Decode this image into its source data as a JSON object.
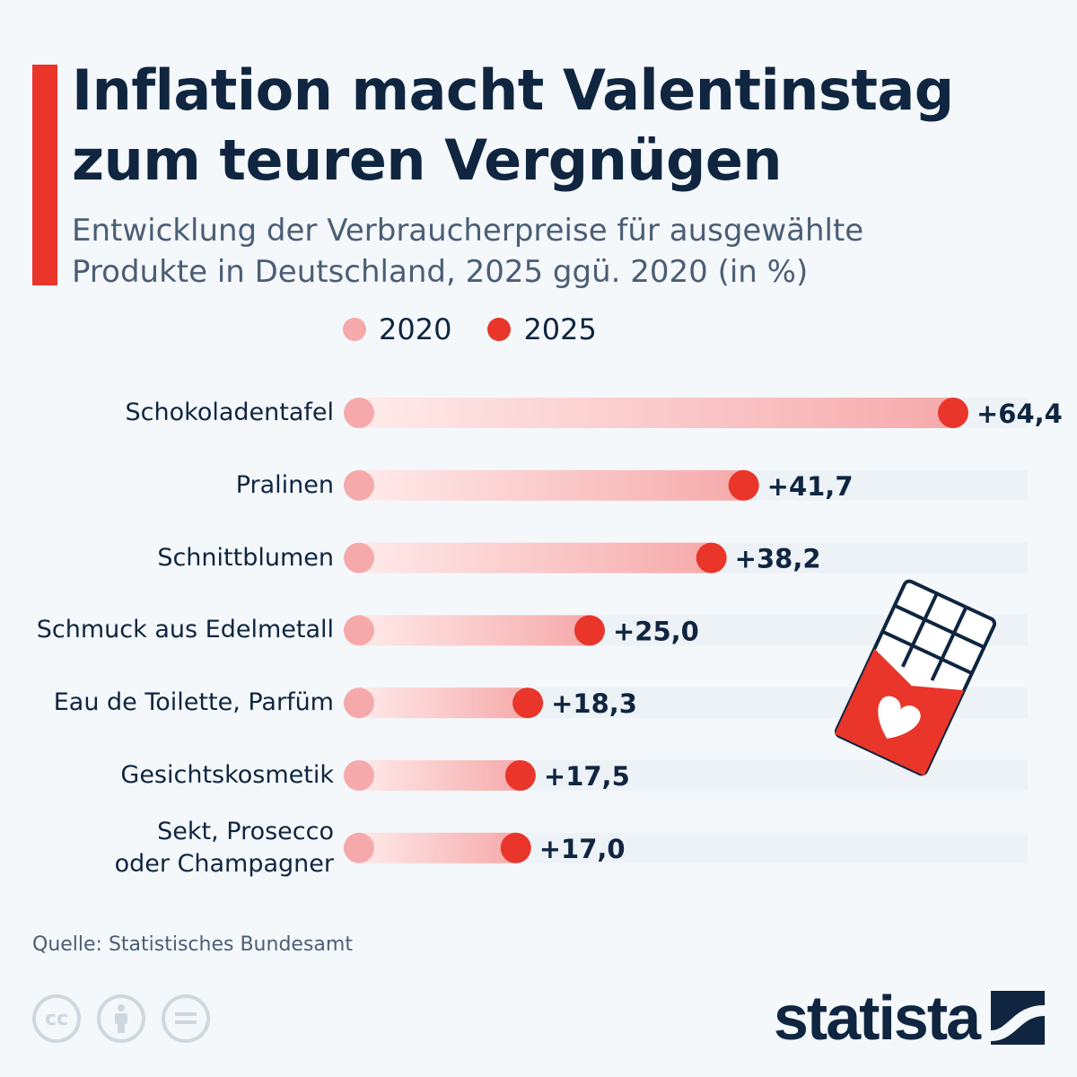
{
  "title_lines": [
    "Inflation macht Valentinstag",
    "zum teuren Vergnügen"
  ],
  "subtitle_lines": [
    "Entwicklung der Verbraucherpreise für ausgewählte",
    "Produkte in Deutschland, 2025 ggü. 2020 (in %)"
  ],
  "colors": {
    "accent": "#e9352a",
    "c2020": "#f6a9ab",
    "c2025": "#e9352a",
    "text": "#0f2540"
  },
  "chart_data": {
    "type": "dumbbell",
    "legend": [
      {
        "name": "2020",
        "color": "#f6a9ab"
      },
      {
        "name": "2025",
        "color": "#e9352a"
      }
    ],
    "categories": [
      "Schokoladentafel",
      "Pralinen",
      "Schnittblumen",
      "Schmuck aus Edelmetall",
      "Eau de Toilette, Parfüm",
      "Gesichtskosmetik",
      "Sekt, Prosecco oder Champagner"
    ],
    "category_lines": [
      [
        "Schokoladentafel"
      ],
      [
        "Pralinen"
      ],
      [
        "Schnittblumen"
      ],
      [
        "Schmuck aus Edelmetall"
      ],
      [
        "Eau de Toilette, Parfüm"
      ],
      [
        "Gesichtskosmetik"
      ],
      [
        "Sekt, Prosecco",
        "oder Champagner"
      ]
    ],
    "values": [
      64.4,
      41.7,
      38.2,
      25.0,
      18.3,
      17.5,
      17.0
    ],
    "value_labels": [
      "+64,4",
      "+41,7",
      "+38,2",
      "+25,0",
      "+18,3",
      "+17,5",
      "+17,0"
    ],
    "xlim": [
      0,
      72
    ]
  },
  "source": "Quelle: Statistisches Bundesamt",
  "license_icons": [
    "cc-icon",
    "by-icon",
    "nd-icon"
  ],
  "license_text": [
    "cc",
    "",
    ""
  ],
  "brand": "statista"
}
